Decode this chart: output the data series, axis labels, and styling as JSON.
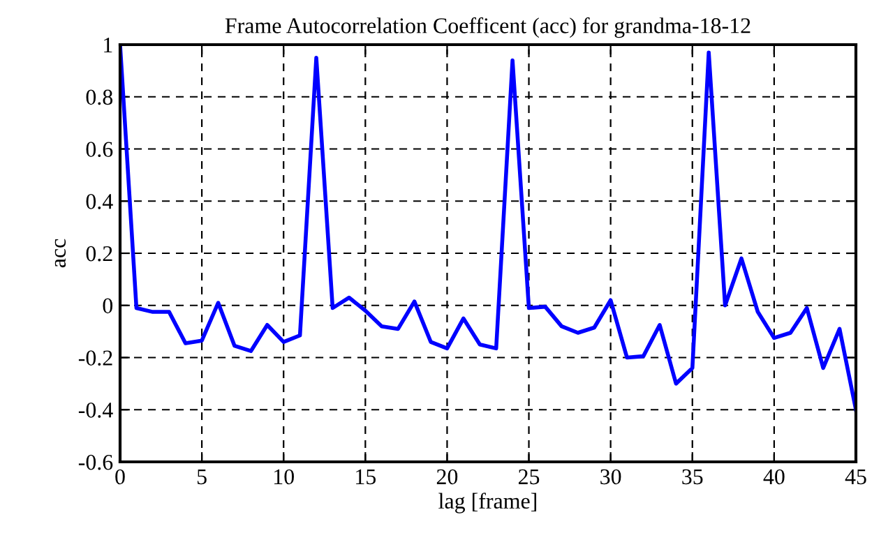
{
  "chart_data": {
    "type": "line",
    "title": "Frame Autocorrelation Coefficent (acc) for grandma-18-12",
    "xlabel": "lag [frame]",
    "ylabel": "acc",
    "x": [
      0,
      1,
      2,
      3,
      4,
      5,
      6,
      7,
      8,
      9,
      10,
      11,
      12,
      13,
      14,
      15,
      16,
      17,
      18,
      19,
      20,
      21,
      22,
      23,
      24,
      25,
      26,
      27,
      28,
      29,
      30,
      31,
      32,
      33,
      34,
      35,
      36,
      37,
      38,
      39,
      40,
      41,
      42,
      43,
      44,
      45
    ],
    "series": [
      {
        "color": "#0000ff",
        "values": [
          1,
          -0.01,
          -0.025,
          -0.025,
          -0.145,
          -0.135,
          0.01,
          -0.155,
          -0.175,
          -0.075,
          -0.14,
          -0.115,
          0.95,
          -0.01,
          0.03,
          -0.02,
          -0.08,
          -0.09,
          0.015,
          -0.14,
          -0.165,
          -0.05,
          -0.15,
          -0.165,
          0.94,
          -0.01,
          -0.005,
          -0.08,
          -0.105,
          -0.085,
          0.02,
          -0.2,
          -0.195,
          -0.075,
          -0.3,
          -0.24,
          0.97,
          0.0,
          0.18,
          -0.025,
          -0.125,
          -0.105,
          -0.01,
          -0.24,
          -0.09,
          -0.4
        ]
      }
    ],
    "xlim": [
      0,
      45
    ],
    "ylim": [
      -0.6,
      1
    ],
    "xticks": [
      0,
      5,
      10,
      15,
      20,
      25,
      30,
      35,
      40,
      45
    ],
    "yticks": [
      -0.6,
      -0.4,
      -0.2,
      0,
      0.2,
      0.4,
      0.6,
      0.8,
      1
    ],
    "grid": true,
    "line_style": "solid",
    "marker": "none",
    "legend": false
  }
}
